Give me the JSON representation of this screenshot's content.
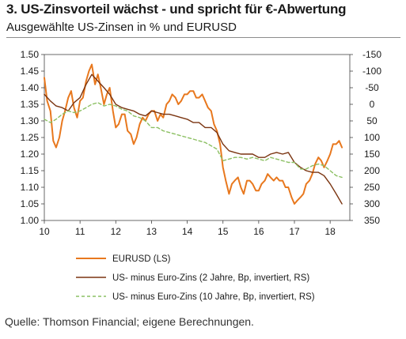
{
  "header": {
    "title": "3. US-Zinsvorteil wächst - und spricht für €-Abwertung",
    "subtitle": "Ausgewählte US-Zinsen in % und EURUSD"
  },
  "footer": {
    "source": "Quelle: Thomson Financial; eigene Berechnungen."
  },
  "colors": {
    "eurusd": "#E8781E",
    "spread2y": "#7A3410",
    "spread10y": "#8CC063",
    "axis": "#444444"
  },
  "chart_data": {
    "type": "line",
    "x_ticks": [
      "10",
      "11",
      "12",
      "13",
      "14",
      "15",
      "16",
      "17",
      "18"
    ],
    "x_tick_values": [
      10,
      11,
      12,
      13,
      14,
      15,
      16,
      17,
      18
    ],
    "xlim": [
      10,
      18.55
    ],
    "y_left": {
      "ylim": [
        1.0,
        1.5
      ],
      "tick_values": [
        1.0,
        1.05,
        1.1,
        1.15,
        1.2,
        1.25,
        1.3,
        1.35,
        1.4,
        1.45,
        1.5
      ],
      "tick_labels": [
        "1.00",
        "1.05",
        "1.10",
        "1.15",
        "1.20",
        "1.25",
        "1.30",
        "1.35",
        "1.40",
        "1.45",
        "1.50"
      ]
    },
    "y_right": {
      "ylim": [
        -150,
        350
      ],
      "inverted": true,
      "tick_values": [
        -150,
        -100,
        -50,
        0,
        50,
        100,
        150,
        200,
        250,
        300,
        350
      ],
      "tick_labels": [
        "-150",
        "-100",
        "-50",
        "0",
        "50",
        "100",
        "150",
        "200",
        "250",
        "300",
        "350"
      ]
    },
    "grid": false,
    "legend_position": "bottom",
    "series": [
      {
        "name": "EURUSD (LS)",
        "axis": "left",
        "style": "solid",
        "x": [
          10.0,
          10.08,
          10.17,
          10.25,
          10.33,
          10.42,
          10.5,
          10.58,
          10.67,
          10.75,
          10.83,
          10.92,
          11.0,
          11.08,
          11.17,
          11.25,
          11.33,
          11.42,
          11.5,
          11.58,
          11.67,
          11.75,
          11.83,
          11.92,
          12.0,
          12.08,
          12.17,
          12.25,
          12.33,
          12.42,
          12.5,
          12.58,
          12.67,
          12.75,
          12.83,
          12.92,
          13.0,
          13.08,
          13.17,
          13.25,
          13.33,
          13.42,
          13.5,
          13.58,
          13.67,
          13.75,
          13.83,
          13.92,
          14.0,
          14.08,
          14.17,
          14.25,
          14.33,
          14.42,
          14.5,
          14.58,
          14.67,
          14.75,
          14.83,
          14.92,
          15.0,
          15.08,
          15.17,
          15.25,
          15.33,
          15.42,
          15.5,
          15.58,
          15.67,
          15.75,
          15.83,
          15.92,
          16.0,
          16.08,
          16.17,
          16.25,
          16.33,
          16.42,
          16.5,
          16.58,
          16.67,
          16.75,
          16.83,
          16.92,
          17.0,
          17.08,
          17.17,
          17.25,
          17.33,
          17.42,
          17.5,
          17.58,
          17.67,
          17.75,
          17.83,
          17.92,
          18.0,
          18.08,
          18.17,
          18.25,
          18.33
        ],
        "values": [
          1.43,
          1.36,
          1.33,
          1.24,
          1.22,
          1.25,
          1.3,
          1.33,
          1.37,
          1.39,
          1.34,
          1.31,
          1.36,
          1.37,
          1.42,
          1.45,
          1.47,
          1.41,
          1.44,
          1.4,
          1.35,
          1.38,
          1.4,
          1.33,
          1.28,
          1.29,
          1.32,
          1.32,
          1.27,
          1.26,
          1.23,
          1.25,
          1.29,
          1.31,
          1.3,
          1.32,
          1.33,
          1.33,
          1.3,
          1.32,
          1.31,
          1.35,
          1.36,
          1.38,
          1.37,
          1.35,
          1.36,
          1.38,
          1.38,
          1.39,
          1.39,
          1.37,
          1.37,
          1.38,
          1.36,
          1.34,
          1.33,
          1.29,
          1.27,
          1.23,
          1.16,
          1.12,
          1.08,
          1.11,
          1.12,
          1.13,
          1.1,
          1.08,
          1.12,
          1.12,
          1.11,
          1.09,
          1.09,
          1.11,
          1.12,
          1.14,
          1.13,
          1.12,
          1.13,
          1.12,
          1.12,
          1.1,
          1.1,
          1.07,
          1.05,
          1.06,
          1.07,
          1.08,
          1.11,
          1.12,
          1.14,
          1.17,
          1.19,
          1.18,
          1.16,
          1.18,
          1.2,
          1.23,
          1.23,
          1.24,
          1.22
        ]
      },
      {
        "name": "US- minus Euro-Zins (2 Jahre, Bp, invertiert, RS)",
        "axis": "right",
        "style": "solid",
        "x": [
          10.0,
          10.17,
          10.33,
          10.5,
          10.67,
          10.83,
          11.0,
          11.17,
          11.33,
          11.5,
          11.67,
          11.83,
          12.0,
          12.17,
          12.33,
          12.5,
          12.67,
          12.83,
          13.0,
          13.17,
          13.33,
          13.5,
          13.67,
          13.83,
          14.0,
          14.17,
          14.33,
          14.5,
          14.67,
          14.83,
          15.0,
          15.17,
          15.33,
          15.5,
          15.67,
          15.83,
          16.0,
          16.17,
          16.33,
          16.5,
          16.67,
          16.83,
          17.0,
          17.17,
          17.33,
          17.5,
          17.67,
          17.83,
          18.0,
          18.17,
          18.33
        ],
        "values": [
          -30,
          -10,
          5,
          10,
          20,
          -5,
          -20,
          -60,
          -90,
          -70,
          -50,
          -30,
          0,
          10,
          15,
          20,
          30,
          35,
          20,
          25,
          30,
          30,
          35,
          40,
          45,
          55,
          55,
          70,
          70,
          85,
          120,
          140,
          145,
          150,
          150,
          150,
          160,
          160,
          150,
          145,
          150,
          145,
          175,
          190,
          200,
          205,
          205,
          215,
          240,
          270,
          300
        ]
      },
      {
        "name": "US- minus Euro-Zins (10 Jahre, Bp, invertiert, RS)",
        "axis": "right",
        "style": "dashed",
        "x": [
          10.0,
          10.17,
          10.33,
          10.5,
          10.67,
          10.83,
          11.0,
          11.17,
          11.33,
          11.5,
          11.67,
          11.83,
          12.0,
          12.17,
          12.33,
          12.5,
          12.67,
          12.83,
          13.0,
          13.17,
          13.33,
          13.5,
          13.67,
          13.83,
          14.0,
          14.17,
          14.33,
          14.5,
          14.67,
          14.83,
          15.0,
          15.17,
          15.33,
          15.5,
          15.67,
          15.83,
          16.0,
          16.17,
          16.33,
          16.5,
          16.67,
          16.83,
          17.0,
          17.17,
          17.33,
          17.5,
          17.67,
          17.83,
          18.0,
          18.17,
          18.33
        ],
        "values": [
          45,
          55,
          45,
          30,
          20,
          25,
          20,
          10,
          0,
          -5,
          5,
          0,
          5,
          15,
          20,
          35,
          40,
          50,
          70,
          70,
          80,
          85,
          90,
          95,
          100,
          105,
          110,
          115,
          125,
          135,
          170,
          165,
          160,
          160,
          165,
          160,
          165,
          170,
          160,
          165,
          170,
          175,
          175,
          195,
          195,
          185,
          180,
          185,
          200,
          215,
          220
        ]
      }
    ]
  }
}
